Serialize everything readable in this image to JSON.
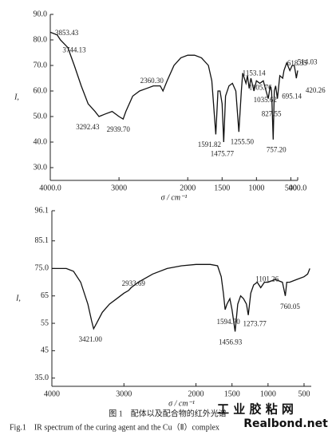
{
  "chart_data": [
    {
      "type": "line",
      "x_label": "σ / cm⁻¹",
      "y_label": "I,",
      "xlim": [
        4000,
        400
      ],
      "ylim": [
        25,
        90
      ],
      "grid": false,
      "xticks": [
        {
          "value": 4000,
          "label": "4000.0"
        },
        3000,
        2000,
        1500,
        1000,
        500,
        {
          "value": 400,
          "label": "400.0"
        }
      ],
      "yticks": [
        {
          "value": 90,
          "label": "90.0"
        },
        {
          "value": 80,
          "label": "80.0"
        },
        {
          "value": 70,
          "label": "70.0"
        },
        {
          "value": 60,
          "label": "60.0"
        },
        {
          "value": 50,
          "label": "50.0"
        },
        {
          "value": 40,
          "label": "40.0"
        },
        {
          "value": 30,
          "label": "30.0"
        }
      ],
      "x": [
        4000,
        3900,
        3853,
        3744,
        3650,
        3550,
        3450,
        3350,
        3292,
        3200,
        3100,
        3000,
        2940,
        2900,
        2800,
        2700,
        2600,
        2500,
        2400,
        2360,
        2300,
        2200,
        2100,
        2000,
        1900,
        1800,
        1700,
        1650,
        1592,
        1560,
        1530,
        1500,
        1476,
        1450,
        1400,
        1350,
        1300,
        1256,
        1220,
        1200,
        1153,
        1130,
        1106,
        1080,
        1036,
        1000,
        950,
        900,
        860,
        828,
        800,
        780,
        757,
        740,
        720,
        695,
        660,
        618,
        600,
        560,
        514,
        480,
        450,
        430,
        420,
        400
      ],
      "series": [
        {
          "color": "#111111",
          "values": [
            83,
            82,
            80,
            77,
            70,
            62,
            55,
            52,
            50,
            51,
            52,
            50,
            49,
            52,
            58,
            60,
            61,
            62,
            62,
            60,
            64,
            70,
            73,
            74,
            74,
            73,
            70,
            64,
            43,
            60,
            60,
            55,
            40,
            58,
            62,
            63,
            60,
            44,
            60,
            67,
            63,
            66,
            61,
            65,
            60,
            64,
            63,
            64,
            60,
            57,
            62,
            60,
            41,
            60,
            62,
            57,
            66,
            65,
            68,
            71,
            68,
            70,
            70,
            67,
            65,
            68
          ]
        }
      ],
      "annotations": [
        {
          "text": "3853.43",
          "x": 3853.43
        },
        {
          "text": "3744.13",
          "x": 3744.13
        },
        {
          "text": "3292.43",
          "x": 3292.43
        },
        {
          "text": "2939.70",
          "x": 2939.7
        },
        {
          "text": "2360.30",
          "x": 2360.3
        },
        {
          "text": "1591.82",
          "x": 1591.82
        },
        {
          "text": "1475.77",
          "x": 1475.77
        },
        {
          "text": "1255.50",
          "x": 1255.5
        },
        {
          "text": "1153.14",
          "x": 1153.14
        },
        {
          "text": "1105.76",
          "x": 1105.76
        },
        {
          "text": "1035.62",
          "x": 1035.62
        },
        {
          "text": "827.55",
          "x": 827.55
        },
        {
          "text": "757.20",
          "x": 757.2
        },
        {
          "text": "618.35",
          "x": 618.35
        },
        {
          "text": "514.03",
          "x": 514.03
        },
        {
          "text": "695.14",
          "x": 695.14
        },
        {
          "text": "420.26",
          "x": 420.26
        }
      ]
    },
    {
      "type": "line",
      "x_label": "σ / cm⁻¹",
      "y_label": "I,",
      "xlim": [
        4000,
        400
      ],
      "ylim": [
        32,
        96.1
      ],
      "grid": false,
      "xticks": [
        4000,
        3000,
        2000,
        1500,
        1000,
        500
      ],
      "yticks": [
        96.1,
        85.1,
        {
          "value": 75,
          "label": "75.0"
        },
        65,
        55,
        45,
        {
          "value": 35,
          "label": "35.0"
        }
      ],
      "x": [
        4000,
        3800,
        3700,
        3600,
        3500,
        3450,
        3421,
        3380,
        3300,
        3200,
        3100,
        3000,
        2934,
        2900,
        2800,
        2600,
        2400,
        2200,
        2000,
        1800,
        1700,
        1650,
        1620,
        1595,
        1570,
        1530,
        1500,
        1457,
        1420,
        1380,
        1340,
        1300,
        1274,
        1240,
        1200,
        1150,
        1101,
        1050,
        1000,
        900,
        800,
        760,
        740,
        700,
        600,
        500,
        450,
        420
      ],
      "series": [
        {
          "color": "#111111",
          "values": [
            75,
            75,
            74,
            70,
            62,
            56,
            53,
            55,
            59,
            62,
            64,
            66,
            67,
            68,
            70,
            73,
            75,
            76,
            76.5,
            76.5,
            76,
            72,
            66,
            60,
            62,
            64,
            60,
            52,
            62,
            65,
            64,
            62,
            58,
            66,
            69,
            70,
            68,
            70,
            70,
            71,
            70,
            65,
            70,
            70,
            71,
            72,
            73,
            75
          ]
        }
      ],
      "annotations": [
        {
          "text": "3421.00",
          "x": 3421.0
        },
        {
          "text": "2933.69",
          "x": 2933.69
        },
        {
          "text": "1594.70",
          "x": 1594.7
        },
        {
          "text": "1456.93",
          "x": 1456.93
        },
        {
          "text": "1273.77",
          "x": 1273.77
        },
        {
          "text": "1101.26",
          "x": 1101.26
        },
        {
          "text": "760.05",
          "x": 760.05
        }
      ]
    }
  ],
  "caption_cn": "图 1　配体以及配合物的红外光谱",
  "caption_en": "Fig.1　IR spectrum of the curing agent and the Cu（Ⅱ）complex",
  "watermark_cn": "工 业 胶 粘 网",
  "watermark_en": "Realbond.net"
}
